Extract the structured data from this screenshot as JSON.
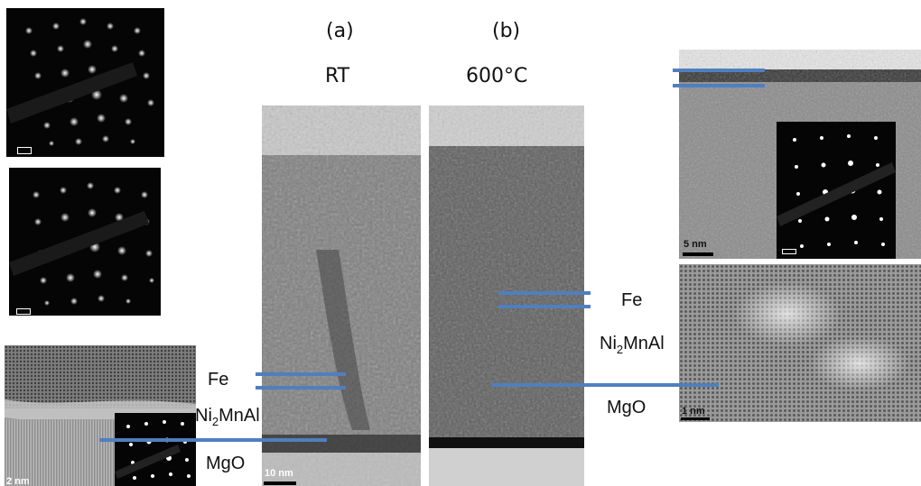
{
  "labels": {
    "panel_a": "(a)",
    "panel_b": "(b)",
    "temp_a": "RT",
    "temp_b": "600°C"
  },
  "layers": {
    "left": {
      "fe": "Fe",
      "ni": "Ni",
      "ni_sub": "2",
      "ni_rest": "MnAl",
      "mgo": "MgO"
    },
    "right": {
      "fe": "Fe",
      "ni": "Ni",
      "ni_sub": "2",
      "ni_rest": "MnAl",
      "mgo": "MgO"
    }
  },
  "scale_bars": {
    "bottom_left": "2 nm",
    "panel_a": "10 nm",
    "top_right": "5 nm",
    "bottom_right": "1 nm"
  },
  "colors": {
    "interface_line": "#4f7fbf",
    "diffraction_bg": "#050505"
  }
}
